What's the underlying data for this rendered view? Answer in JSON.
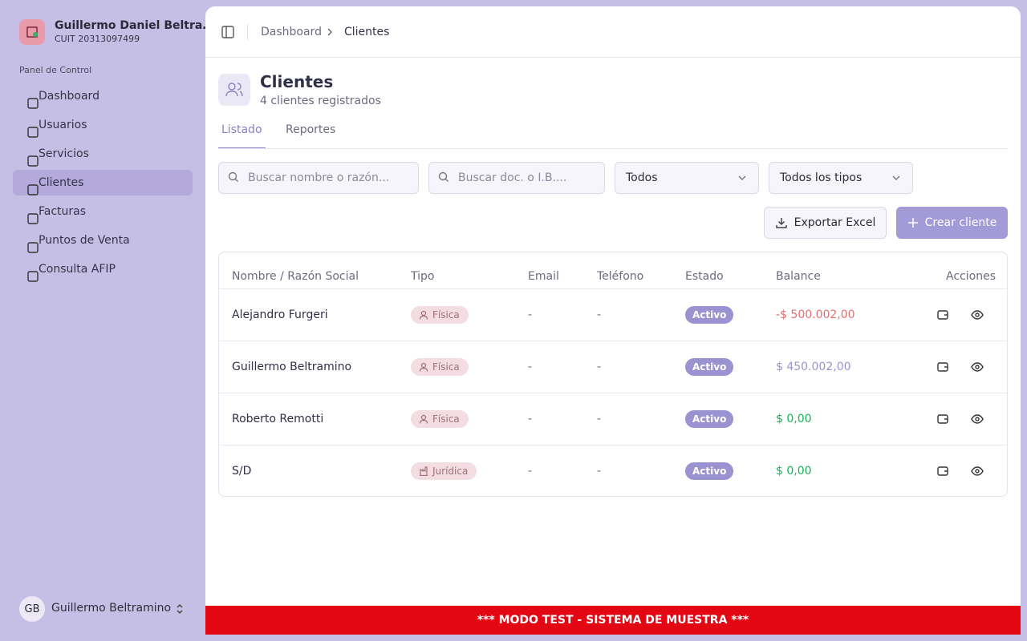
{
  "sidebar": {
    "org_name": "Guillermo Daniel Beltra…",
    "org_id": "CUIT 20313097499",
    "section": "Panel de Control",
    "nav": [
      "Dashboard",
      "Usuarios",
      "Servicios",
      "Clientes",
      "Facturas",
      "Puntos de Venta",
      "Consulta AFIP"
    ],
    "active": 3,
    "user": {
      "initials": "GB",
      "name": "Guillermo Beltramino"
    }
  },
  "header": {
    "breadcrumb": [
      "Dashboard",
      "Clientes"
    ]
  },
  "page": {
    "title": "Clientes",
    "subtitle": "4 clientes registrados",
    "tabs": [
      "Listado",
      "Reportes"
    ],
    "active_tab": 0
  },
  "filters": {
    "search_name": "Buscar nombre o razón...",
    "search_doc": "Buscar doc. o I.B....",
    "estado": "Todos",
    "tipo": "Todos los tipos"
  },
  "actions": {
    "export": "Exportar Excel",
    "create": "Crear cliente"
  },
  "table": {
    "columns": [
      "Nombre / Razón Social",
      "Tipo",
      "Email",
      "Teléfono",
      "Estado",
      "Balance",
      "Acciones"
    ],
    "rows": [
      {
        "nombre": "Alejandro Furgeri",
        "tipo": "Física",
        "tipo_icon": "person",
        "email": "-",
        "telefono": "-",
        "estado": "Activo",
        "balance": "-$ 500.002,00",
        "balance_color": "#e07070"
      },
      {
        "nombre": "Guillermo Beltramino",
        "tipo": "Física",
        "tipo_icon": "person",
        "email": "-",
        "telefono": "-",
        "estado": "Activo",
        "balance": "$ 450.002,00",
        "balance_color": "#9b92d2"
      },
      {
        "nombre": "Roberto Remotti",
        "tipo": "Física",
        "tipo_icon": "person",
        "email": "-",
        "telefono": "-",
        "estado": "Activo",
        "balance": "$ 0,00",
        "balance_color": "#17b357"
      },
      {
        "nombre": "S/D",
        "tipo": "Jurídica",
        "tipo_icon": "building",
        "email": "-",
        "telefono": "-",
        "estado": "Activo",
        "balance": "$ 0,00",
        "balance_color": "#17b357"
      }
    ]
  },
  "banner": "*** MODO TEST - SISTEMA DE MUESTRA ***"
}
